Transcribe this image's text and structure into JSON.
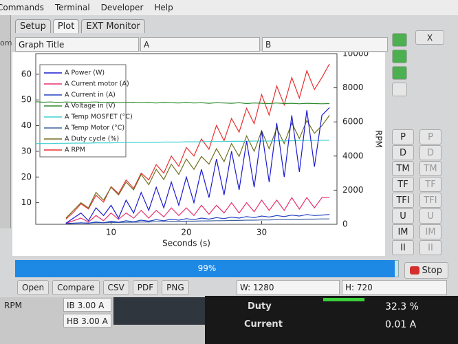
{
  "menu": [
    "Commands",
    "Terminal",
    "Developer",
    "Help"
  ],
  "tabs": [
    "Setup",
    "Plot",
    "EXT Monitor"
  ],
  "sidebar_text": "om",
  "fields": {
    "graph_title": "Graph Title",
    "a": "A",
    "b": "B"
  },
  "close": "X",
  "chart_data": {
    "type": "line",
    "x": [
      0,
      1,
      2,
      3,
      4,
      5,
      6,
      7,
      8,
      9,
      10,
      11,
      12,
      13,
      14,
      15,
      16,
      17,
      18,
      19,
      20,
      21,
      22,
      23,
      24,
      25,
      26,
      27,
      28,
      29,
      30,
      31,
      32,
      33,
      34,
      35,
      36,
      37,
      38,
      39
    ],
    "xlim": [
      0,
      40
    ],
    "xticks": [
      10,
      20,
      30
    ],
    "xlabel": "Seconds (s)",
    "ylim": [
      1.6,
      68
    ],
    "yticks": [
      10,
      20,
      30,
      40,
      50,
      60
    ],
    "y2lim": [
      0,
      10000
    ],
    "y2ticks": [
      0,
      2000,
      4000,
      6000,
      8000,
      10000
    ],
    "y2label": "RPM",
    "series": [
      {
        "name": "A Power (W)",
        "color": "#1a1ad0",
        "values": [
          null,
          null,
          null,
          null,
          2,
          4,
          6,
          3,
          8,
          5,
          9,
          4,
          11,
          6,
          14,
          7,
          16,
          8,
          18,
          9,
          20,
          10,
          23,
          12,
          27,
          13,
          30,
          15,
          34,
          16,
          38,
          18,
          41,
          20,
          44,
          22,
          46,
          24,
          44,
          47
        ]
      },
      {
        "name": "A Current motor (A)",
        "color": "#e8306a",
        "values": [
          null,
          null,
          null,
          null,
          2,
          3,
          4,
          2.5,
          5,
          3,
          6,
          3.5,
          6,
          4,
          7,
          4,
          7,
          4.5,
          8,
          5,
          8,
          5,
          9,
          5.5,
          9,
          6,
          10,
          6,
          10,
          6.5,
          11,
          7,
          11,
          7,
          12,
          7.5,
          12,
          8,
          12,
          12
        ]
      },
      {
        "name": "A Current in (A)",
        "color": "#2040c0",
        "values": [
          null,
          null,
          null,
          null,
          1.8,
          2,
          2.2,
          2,
          2.5,
          2.2,
          2.8,
          2.4,
          3,
          2.6,
          3.2,
          2.8,
          3.4,
          3,
          3.6,
          3.2,
          3.8,
          3.4,
          4,
          3.6,
          4.2,
          3.8,
          4.4,
          4,
          4.6,
          4.2,
          4.8,
          4.4,
          5,
          4.6,
          5.2,
          4.8,
          5.4,
          5,
          5.2,
          5.4
        ]
      },
      {
        "name": "A Voltage in (V)",
        "color": "#2e8b2e",
        "values": [
          49.3,
          49.1,
          49.2,
          49,
          49.2,
          49.1,
          49,
          49.1,
          49.2,
          49,
          49.1,
          48.9,
          49,
          49.1,
          48.9,
          49,
          48.8,
          49,
          48.9,
          48.8,
          49,
          48.8,
          48.9,
          48.7,
          48.9,
          48.8,
          48.7,
          48.9,
          48.6,
          48.8,
          48.7,
          48.6,
          48.8,
          48.6,
          48.7,
          48.5,
          48.7,
          48.6,
          48.5,
          48.6
        ]
      },
      {
        "name": "A Temp MOSFET (°C)",
        "color": "#40d0d0",
        "values": [
          33,
          33,
          33,
          33.1,
          33.1,
          33.2,
          33.2,
          33.2,
          33.3,
          33.3,
          33.3,
          33.4,
          33.4,
          33.4,
          33.5,
          33.5,
          33.5,
          33.6,
          33.6,
          33.6,
          33.7,
          33.7,
          33.7,
          33.8,
          33.8,
          33.8,
          33.9,
          33.9,
          33.9,
          34,
          34,
          34,
          34.1,
          34.1,
          34.1,
          34.2,
          34.2,
          34.2,
          34.3,
          34.3
        ]
      },
      {
        "name": "A Temp Motor (°C)",
        "color": "#4060a0",
        "values": [
          null,
          null,
          null,
          null,
          2,
          2,
          2.1,
          2.1,
          2.2,
          2.2,
          2.3,
          2.3,
          2.4,
          2.4,
          2.5,
          2.5,
          2.6,
          2.6,
          2.7,
          2.7,
          2.8,
          2.8,
          2.9,
          2.9,
          3,
          3,
          3.1,
          3.1,
          3.2,
          3.2,
          3.3,
          3.3,
          3.4,
          3.4,
          3.5,
          3.5,
          3.6,
          3.6,
          3.7,
          3.7
        ]
      },
      {
        "name": "A Duty cycle (%)",
        "color": "#707020",
        "values": [
          null,
          null,
          null,
          null,
          4,
          7,
          10,
          8,
          14,
          11,
          16,
          13,
          18,
          15,
          21,
          17,
          23,
          19,
          25,
          21,
          27,
          23,
          28,
          25,
          31,
          26,
          33,
          28,
          36,
          30,
          38,
          31,
          39,
          33,
          41,
          35,
          42,
          37,
          40,
          44
        ]
      },
      {
        "name": "A RPM",
        "color": "#e83030",
        "axis": "y2",
        "values": [
          null,
          null,
          null,
          null,
          300,
          700,
          1200,
          900,
          1700,
          1300,
          2200,
          1800,
          2600,
          2100,
          3000,
          2600,
          3500,
          3000,
          4000,
          3400,
          4500,
          4000,
          5000,
          4400,
          5800,
          4900,
          6200,
          5400,
          6800,
          5900,
          7600,
          6400,
          8100,
          7000,
          8600,
          7400,
          9000,
          7900,
          8600,
          9400
        ]
      }
    ]
  },
  "side_buttons": [
    "P",
    "D",
    "TM",
    "TF",
    "TFI",
    "U",
    "IM",
    "II"
  ],
  "progress": {
    "label": "99%",
    "value": 99
  },
  "stop": "Stop",
  "toolbar": [
    "Open",
    "Compare",
    "CSV",
    "PDF",
    "PNG"
  ],
  "width_field": "W: 1280",
  "height_field": "H: 720",
  "status": {
    "rpm": "RPM",
    "ib": "IB 3.00 A",
    "hb": "HB 3.00 A"
  },
  "readouts": [
    {
      "label": "Duty",
      "value": "32.3 %"
    },
    {
      "label": "Current",
      "value": "0.01 A"
    }
  ]
}
